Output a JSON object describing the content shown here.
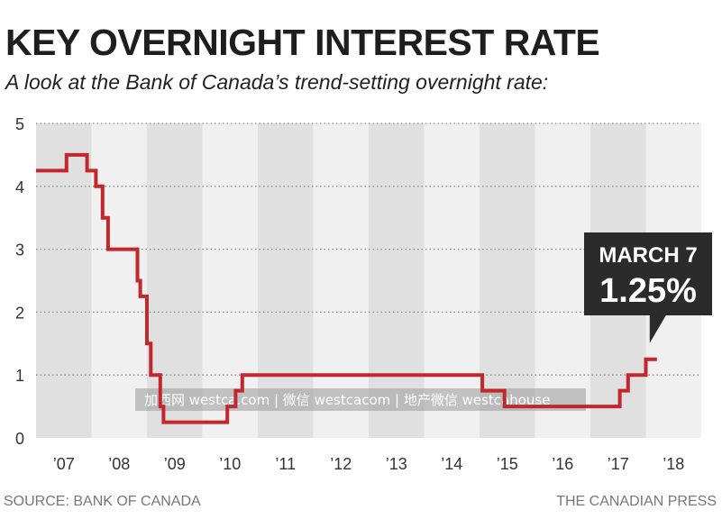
{
  "header": {
    "title": "KEY OVERNIGHT INTEREST RATE",
    "subtitle": "A look at the Bank of Canada’s trend-setting overnight rate:"
  },
  "footer": {
    "source": "SOURCE: BANK OF CANADA",
    "credit": "THE CANADIAN PRESS"
  },
  "watermark": "加西网 westca.com | 微信 westcacom | 地产微信 westcahouse",
  "colors": {
    "line": "#c1272d",
    "band_dark": "#e0e0e0",
    "band_light": "#f0f0f0",
    "callout": "#2b2b2b"
  },
  "chart_data": {
    "type": "line",
    "step": true,
    "xlim": [
      2007.0,
      2019.0
    ],
    "ylim": [
      0,
      5
    ],
    "yticks": [
      0,
      1,
      2,
      3,
      4,
      5
    ],
    "xticks": [
      {
        "label": "’07",
        "value": 2007.5
      },
      {
        "label": "’08",
        "value": 2008.5
      },
      {
        "label": "’09",
        "value": 2009.5
      },
      {
        "label": "’10",
        "value": 2010.5
      },
      {
        "label": "’11",
        "value": 2011.5
      },
      {
        "label": "’12",
        "value": 2012.5
      },
      {
        "label": "’13",
        "value": 2013.5
      },
      {
        "label": "’14",
        "value": 2014.5
      },
      {
        "label": "’15",
        "value": 2015.5
      },
      {
        "label": "’16",
        "value": 2016.5
      },
      {
        "label": "’17",
        "value": 2017.5
      },
      {
        "label": "’18",
        "value": 2018.5
      }
    ],
    "grid": "horizontal-dotted",
    "year_bands": true,
    "series": [
      {
        "points": [
          [
            2007.0,
            4.25
          ],
          [
            2007.55,
            4.5
          ],
          [
            2007.92,
            4.25
          ],
          [
            2008.08,
            4.0
          ],
          [
            2008.2,
            3.5
          ],
          [
            2008.3,
            3.0
          ],
          [
            2008.83,
            2.5
          ],
          [
            2008.88,
            2.25
          ],
          [
            2009.0,
            1.5
          ],
          [
            2009.07,
            1.0
          ],
          [
            2009.24,
            0.5
          ],
          [
            2009.3,
            0.25
          ],
          [
            2010.45,
            0.5
          ],
          [
            2010.6,
            0.75
          ],
          [
            2010.72,
            1.0
          ],
          [
            2015.05,
            0.75
          ],
          [
            2015.45,
            0.5
          ],
          [
            2017.53,
            0.75
          ],
          [
            2017.68,
            1.0
          ],
          [
            2018.0,
            1.25
          ],
          [
            2018.2,
            1.25
          ]
        ]
      }
    ],
    "annotations": [
      {
        "date_label": "MARCH 7",
        "value_label": "1.25%",
        "x": 2018.2,
        "y": 1.25
      }
    ]
  }
}
